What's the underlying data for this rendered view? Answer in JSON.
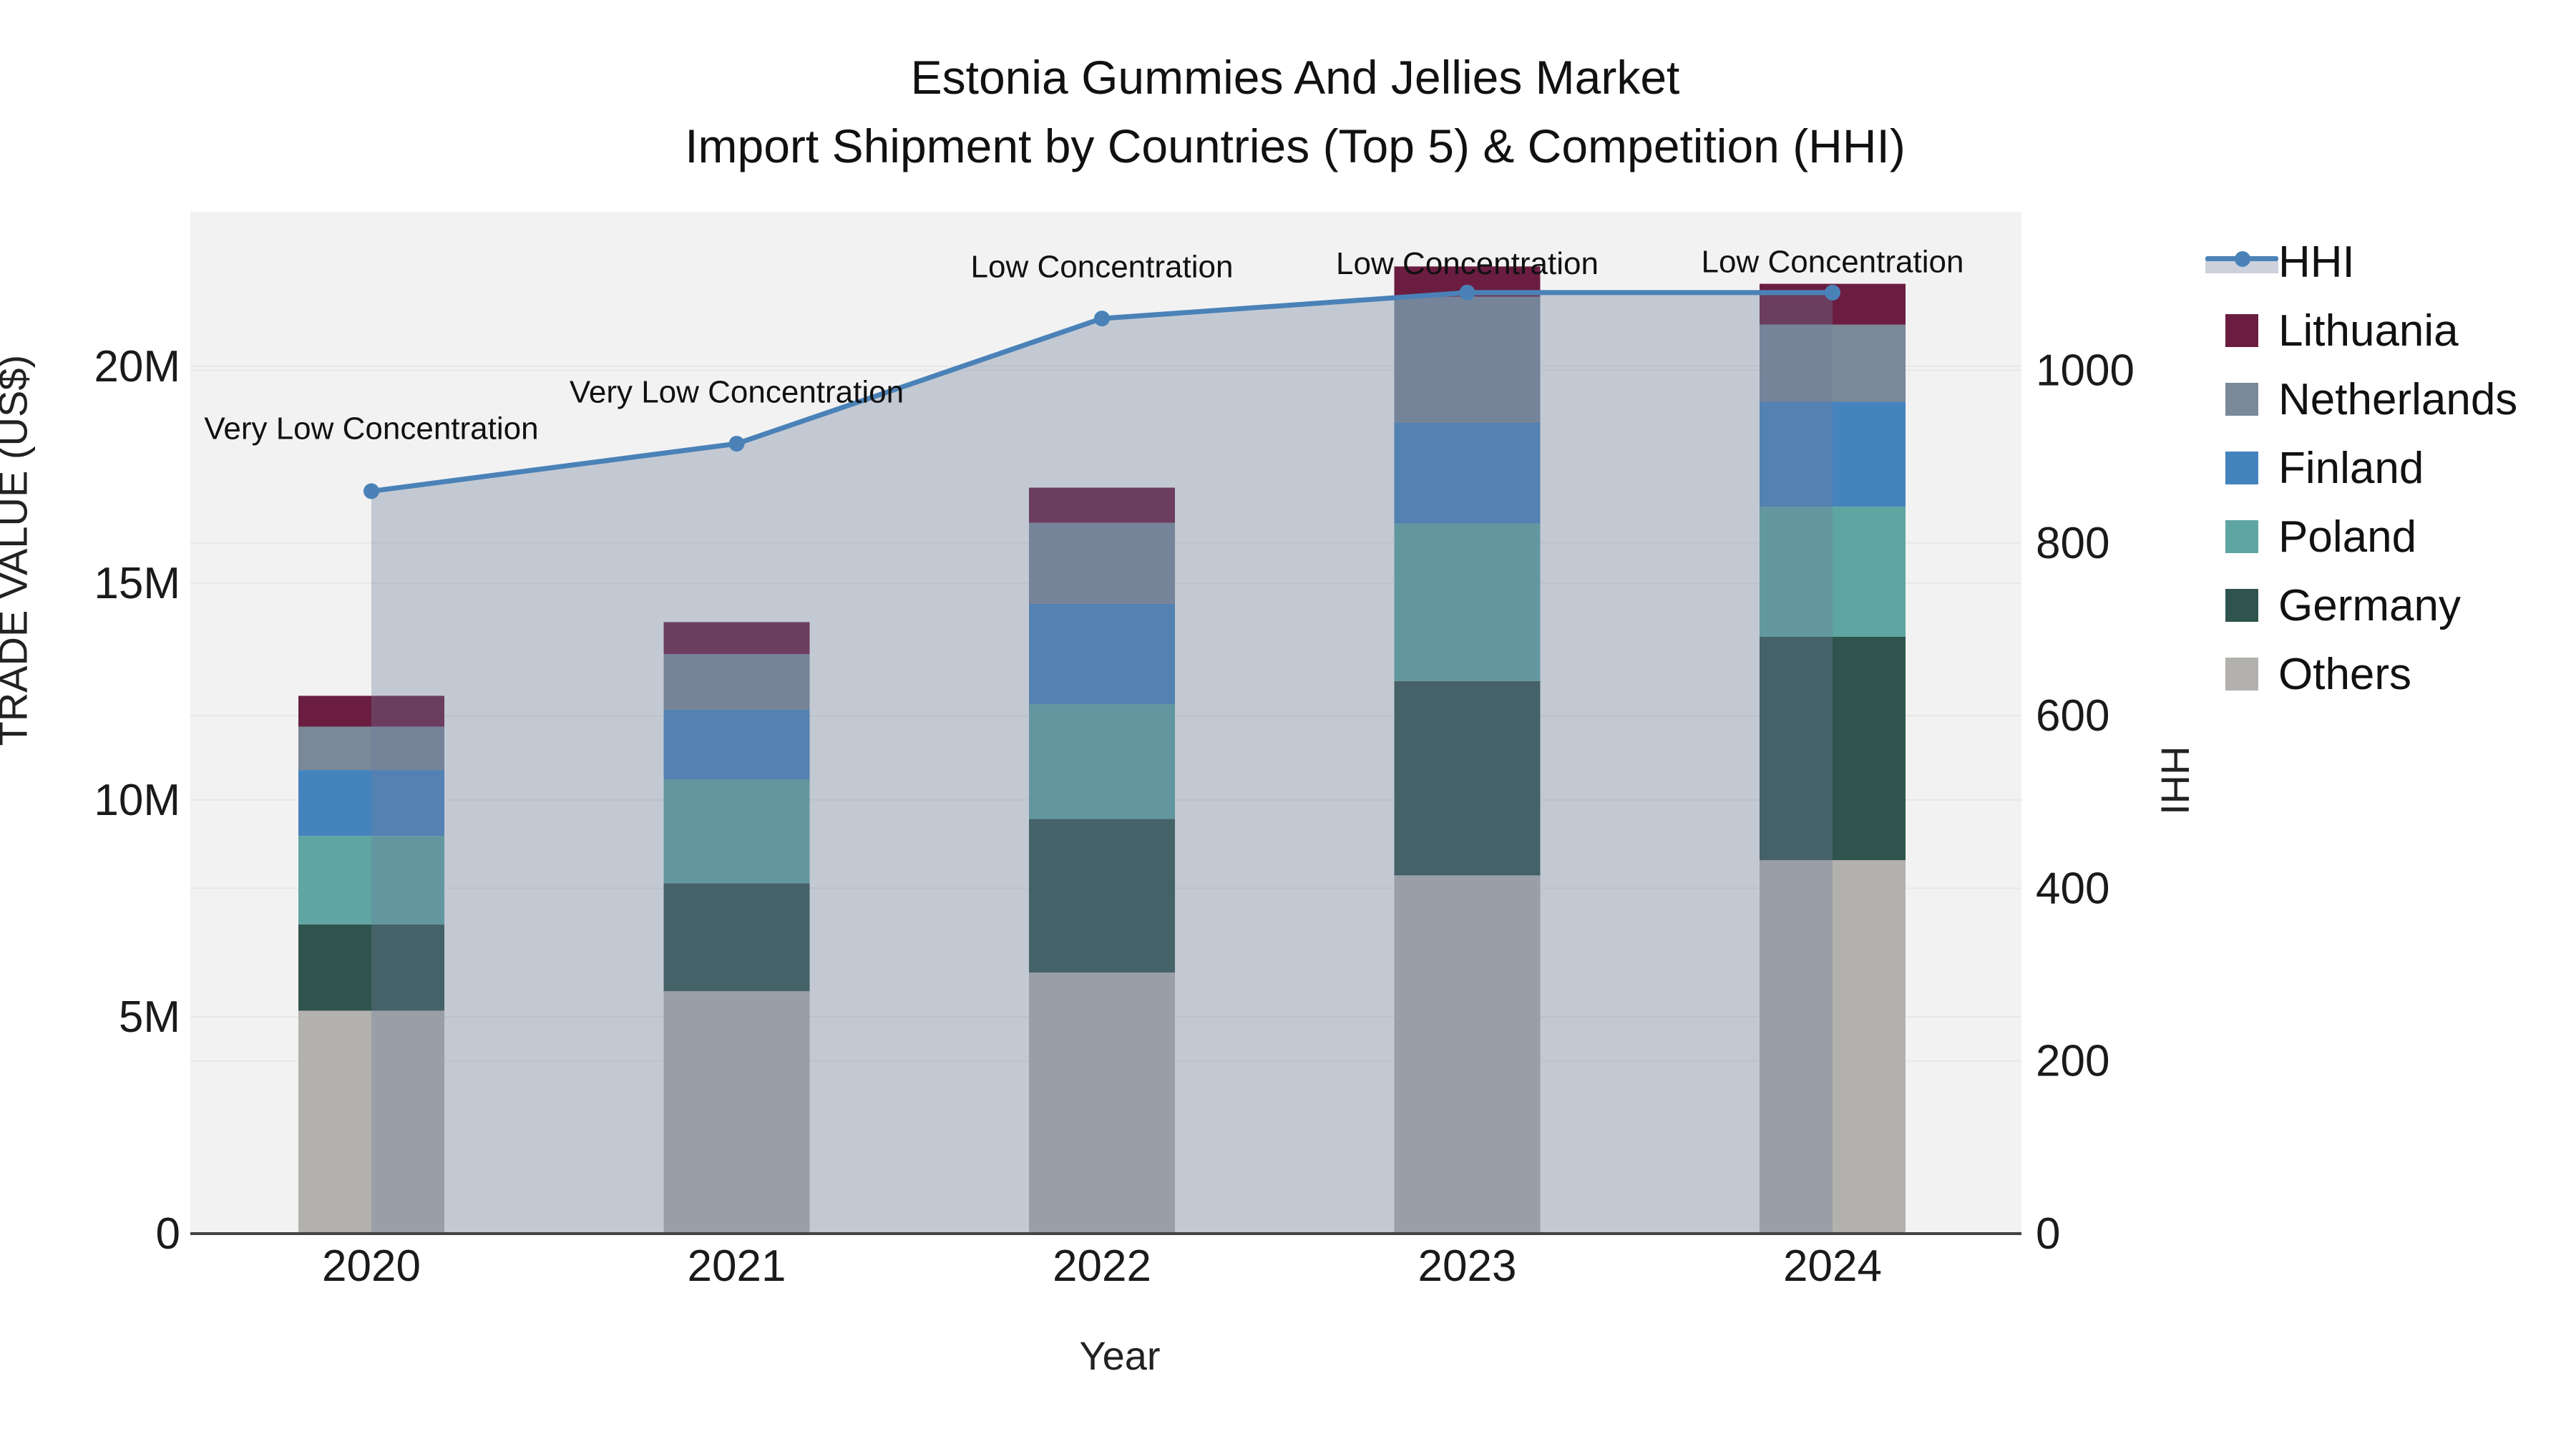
{
  "header": {
    "title_line1": "Estonia Gummies And Jellies Market",
    "title_line2": "Import Shipment by Countries (Top 5) & Competition (HHI)"
  },
  "chart_data": {
    "type": "bar+line",
    "title": "Estonia Gummies And Jellies Market Import Shipment by Countries (Top 5) & Competition (HHI)",
    "categories": [
      "2020",
      "2021",
      "2022",
      "2023",
      "2024"
    ],
    "stack_unit": "millions USD",
    "series": [
      {
        "name": "Others",
        "color": "#B3B1AE",
        "values": [
          5.14,
          5.59,
          6.02,
          8.26,
          8.61
        ]
      },
      {
        "name": "Germany",
        "color": "#2F544E",
        "values": [
          1.99,
          2.49,
          3.54,
          4.48,
          5.15
        ]
      },
      {
        "name": "Poland",
        "color": "#5FA5A1",
        "values": [
          2.04,
          2.39,
          2.65,
          3.63,
          3.0
        ]
      },
      {
        "name": "Finland",
        "color": "#4583BD",
        "values": [
          1.52,
          1.61,
          2.31,
          2.33,
          2.42
        ]
      },
      {
        "name": "Netherlands",
        "color": "#7A8898",
        "values": [
          1.0,
          1.28,
          1.87,
          2.9,
          1.78
        ]
      },
      {
        "name": "Lithuania",
        "color": "#6B1D41",
        "values": [
          0.71,
          0.74,
          0.81,
          0.7,
          0.94
        ]
      }
    ],
    "hhi_line": {
      "name": "HHI",
      "color": "#4A82B8",
      "area_fill_color": "rgba(110,125,155,0.35)",
      "values": [
        860,
        915,
        1060,
        1090,
        1090
      ]
    },
    "annotations": [
      {
        "category": "2020",
        "label": "Very Low Concentration",
        "y_hhi": 933
      },
      {
        "category": "2021",
        "label": "Very Low Concentration",
        "y_hhi": 975
      },
      {
        "category": "2022",
        "label": "Low Concentration",
        "y_hhi": 1120
      },
      {
        "category": "2023",
        "label": "Low Concentration",
        "y_hhi": 1124
      },
      {
        "category": "2024",
        "label": "Low Concentration",
        "y_hhi": 1126
      }
    ],
    "left_axis": {
      "title": "TRADE VALUE (US$)",
      "ylim": [
        0,
        23.56
      ],
      "ticks": [
        {
          "value": 0,
          "label": "0"
        },
        {
          "value": 5,
          "label": "5M"
        },
        {
          "value": 10,
          "label": "10M"
        },
        {
          "value": 15,
          "label": "15M"
        },
        {
          "value": 20,
          "label": "20M"
        }
      ]
    },
    "right_axis": {
      "title": "HHI",
      "ylim": [
        0,
        1183.6
      ],
      "ticks": [
        {
          "value": 0,
          "label": "0"
        },
        {
          "value": 200,
          "label": "200"
        },
        {
          "value": 400,
          "label": "400"
        },
        {
          "value": 600,
          "label": "600"
        },
        {
          "value": 800,
          "label": "800"
        },
        {
          "value": 1000,
          "label": "1000"
        }
      ]
    },
    "x_axis": {
      "title": "Year"
    },
    "grid": true,
    "legend_position": "right",
    "colors": {
      "plot_background": "#F2F2F2",
      "page_background": "#FFFFFF",
      "gridline": "#E7E7E7",
      "axis_line": "#444444",
      "tick_text": "#1A1A1A",
      "annotation_text": "#111111"
    },
    "legend": {
      "items": [
        {
          "label": "HHI",
          "type": "line",
          "color": "#4A82B8"
        },
        {
          "label": "Lithuania",
          "type": "square",
          "color": "#6B1D41"
        },
        {
          "label": "Netherlands",
          "type": "square",
          "color": "#7A8898"
        },
        {
          "label": "Finland",
          "type": "square",
          "color": "#4583BD"
        },
        {
          "label": "Poland",
          "type": "square",
          "color": "#5FA5A1"
        },
        {
          "label": "Germany",
          "type": "square",
          "color": "#2F544E"
        },
        {
          "label": "Others",
          "type": "square",
          "color": "#B3B1AE"
        }
      ]
    }
  }
}
